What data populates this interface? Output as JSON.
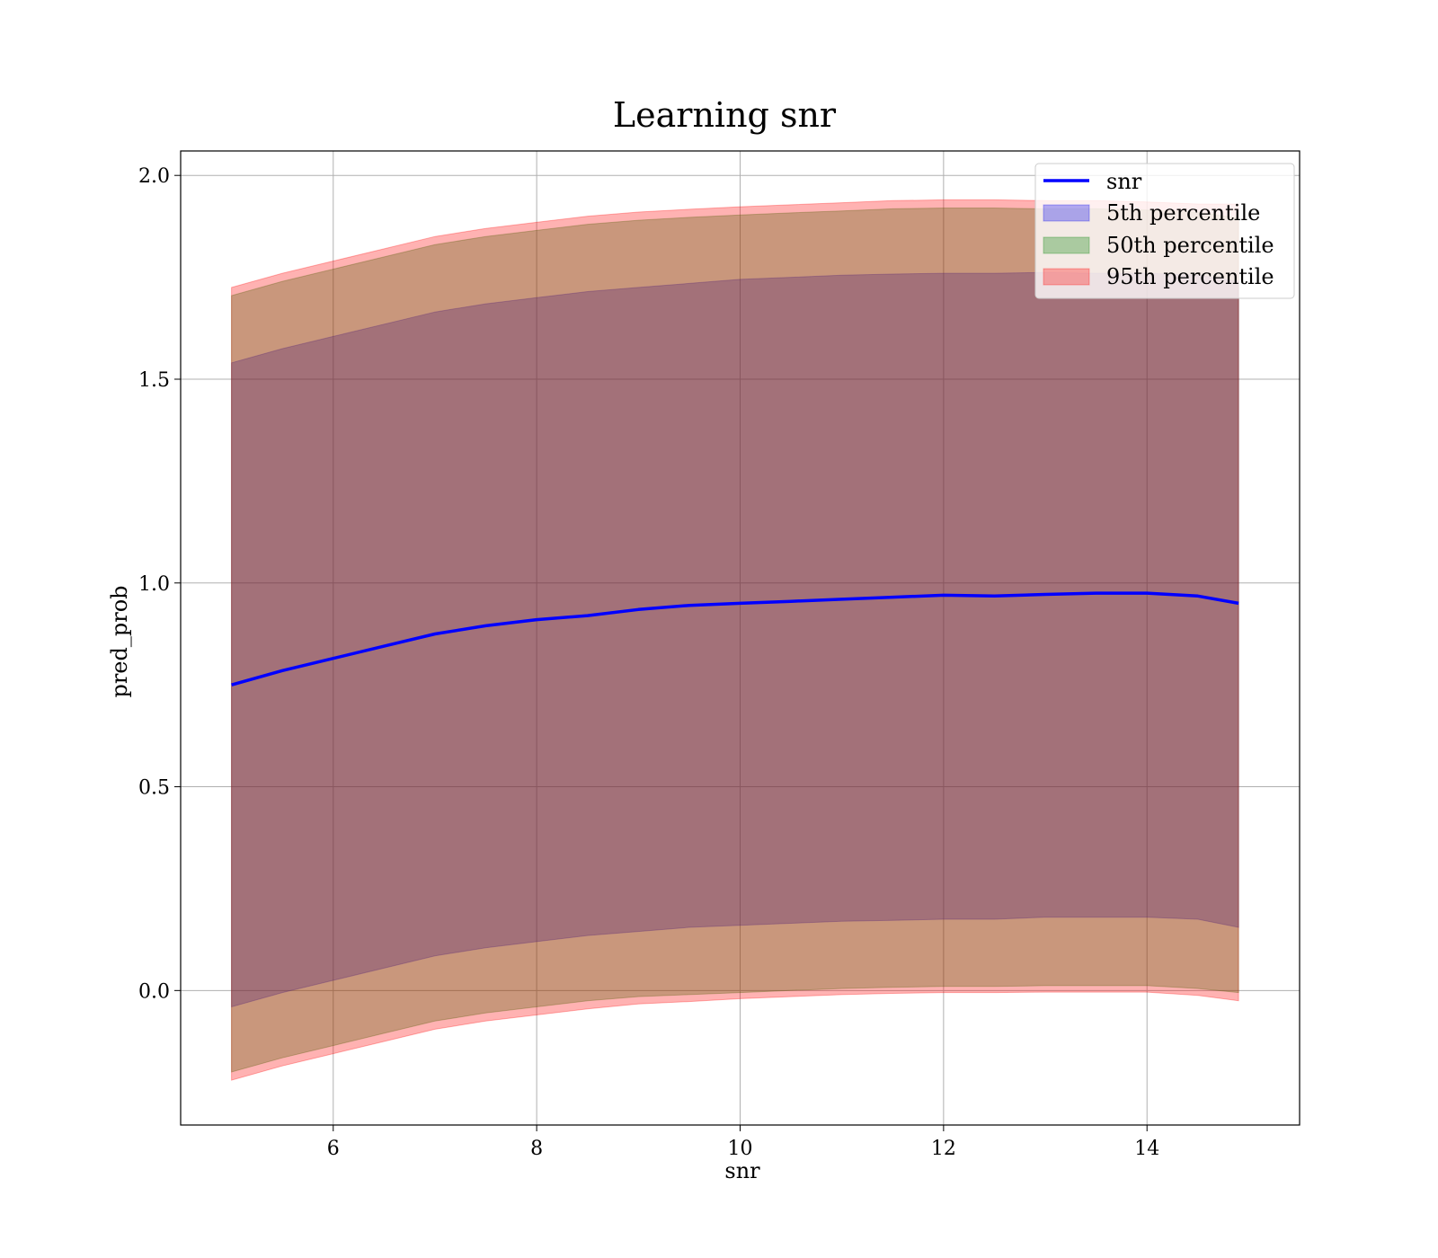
{
  "chart_data": {
    "type": "line",
    "title": "Learning snr",
    "xlabel": "snr",
    "ylabel": "pred_prob",
    "xlim": [
      4.5,
      15.5
    ],
    "ylim": [
      -0.33,
      2.06
    ],
    "grid": true,
    "legend_position": "top-right",
    "x_ticks": [
      6,
      8,
      10,
      12,
      14
    ],
    "y_ticks": [
      0.0,
      0.5,
      1.0,
      1.5,
      2.0
    ],
    "x_tick_labels": [
      "6",
      "8",
      "10",
      "12",
      "14"
    ],
    "y_tick_labels": [
      "0.0",
      "0.5",
      "1.0",
      "1.5",
      "2.0"
    ],
    "x": [
      5.0,
      5.5,
      6.0,
      6.5,
      7.0,
      7.5,
      8.0,
      8.5,
      9.0,
      9.5,
      10.0,
      10.5,
      11.0,
      11.5,
      12.0,
      12.5,
      13.0,
      13.5,
      14.0,
      14.5,
      14.9
    ],
    "series": [
      {
        "name": "snr",
        "kind": "line",
        "color": "#0000ff",
        "values": [
          0.75,
          0.785,
          0.815,
          0.845,
          0.875,
          0.895,
          0.91,
          0.92,
          0.935,
          0.945,
          0.95,
          0.955,
          0.96,
          0.965,
          0.97,
          0.968,
          0.972,
          0.975,
          0.975,
          0.968,
          0.95
        ]
      },
      {
        "name": "5th percentile",
        "kind": "band",
        "color": "#0000ee",
        "lower": [
          -0.04,
          -0.005,
          0.025,
          0.055,
          0.085,
          0.105,
          0.12,
          0.135,
          0.145,
          0.155,
          0.16,
          0.165,
          0.17,
          0.172,
          0.175,
          0.175,
          0.18,
          0.18,
          0.18,
          0.175,
          0.155
        ],
        "upper": [
          1.54,
          1.575,
          1.605,
          1.635,
          1.665,
          1.685,
          1.7,
          1.715,
          1.725,
          1.735,
          1.745,
          1.75,
          1.755,
          1.758,
          1.76,
          1.76,
          1.762,
          1.76,
          1.76,
          1.755,
          1.74
        ]
      },
      {
        "name": "50th percentile",
        "kind": "band",
        "color": "#008000",
        "lower": [
          -0.2,
          -0.165,
          -0.135,
          -0.105,
          -0.075,
          -0.055,
          -0.04,
          -0.025,
          -0.015,
          -0.01,
          -0.005,
          0.0,
          0.005,
          0.008,
          0.01,
          0.01,
          0.012,
          0.012,
          0.012,
          0.005,
          -0.005
        ],
        "upper": [
          1.705,
          1.74,
          1.77,
          1.8,
          1.83,
          1.85,
          1.865,
          1.88,
          1.89,
          1.897,
          1.903,
          1.908,
          1.913,
          1.918,
          1.92,
          1.92,
          1.918,
          1.918,
          1.915,
          1.91,
          1.895
        ]
      },
      {
        "name": "95th percentile",
        "kind": "band",
        "color": "#ff0000",
        "lower": [
          -0.22,
          -0.185,
          -0.155,
          -0.125,
          -0.095,
          -0.075,
          -0.06,
          -0.045,
          -0.033,
          -0.027,
          -0.02,
          -0.015,
          -0.01,
          -0.007,
          -0.005,
          -0.005,
          -0.004,
          -0.004,
          -0.004,
          -0.012,
          -0.025
        ],
        "upper": [
          1.725,
          1.76,
          1.79,
          1.82,
          1.85,
          1.87,
          1.885,
          1.9,
          1.91,
          1.917,
          1.923,
          1.928,
          1.933,
          1.938,
          1.94,
          1.94,
          1.938,
          1.938,
          1.935,
          1.93,
          1.93
        ]
      }
    ]
  }
}
